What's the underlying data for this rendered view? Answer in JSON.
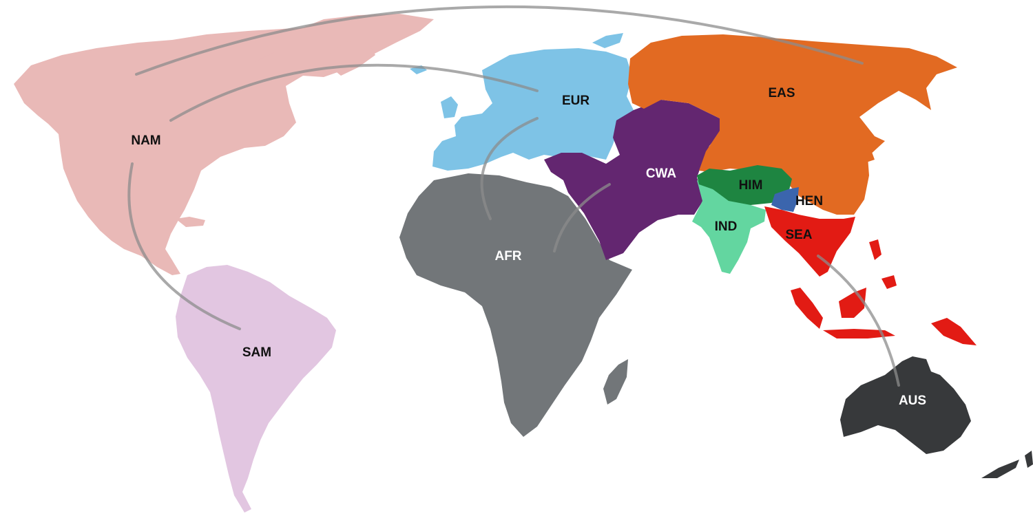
{
  "regions": [
    {
      "id": "NAM",
      "label": "NAM",
      "color": "#e9b9b7",
      "label_color": "#111111"
    },
    {
      "id": "SAM",
      "label": "SAM",
      "color": "#e2c6e1",
      "label_color": "#111111"
    },
    {
      "id": "EUR",
      "label": "EUR",
      "color": "#7ec3e6",
      "label_color": "#111111"
    },
    {
      "id": "AFR",
      "label": "AFR",
      "color": "#727679",
      "label_color": "#ffffff"
    },
    {
      "id": "CWA",
      "label": "CWA",
      "color": "#632670",
      "label_color": "#ffffff"
    },
    {
      "id": "EAS",
      "label": "EAS",
      "color": "#e26a22",
      "label_color": "#111111"
    },
    {
      "id": "HIM",
      "label": "HIM",
      "color": "#1e8541",
      "label_color": "#111111"
    },
    {
      "id": "HEN",
      "label": "HEN",
      "color": "#3b65ad",
      "label_color": "#111111"
    },
    {
      "id": "IND",
      "label": "IND",
      "color": "#63d6a0",
      "label_color": "#111111"
    },
    {
      "id": "SEA",
      "label": "SEA",
      "color": "#e21b14",
      "label_color": "#111111"
    },
    {
      "id": "AUS",
      "label": "AUS",
      "color": "#37393b",
      "label_color": "#ffffff"
    }
  ],
  "connections": [
    {
      "from": "NAM",
      "to": "EAS"
    },
    {
      "from": "NAM",
      "to": "EUR"
    },
    {
      "from": "NAM",
      "to": "SAM"
    },
    {
      "from": "EUR",
      "to": "AFR"
    },
    {
      "from": "CWA",
      "to": "AFR"
    },
    {
      "from": "SEA",
      "to": "AUS"
    }
  ],
  "connector_color": "#8c8c8c"
}
